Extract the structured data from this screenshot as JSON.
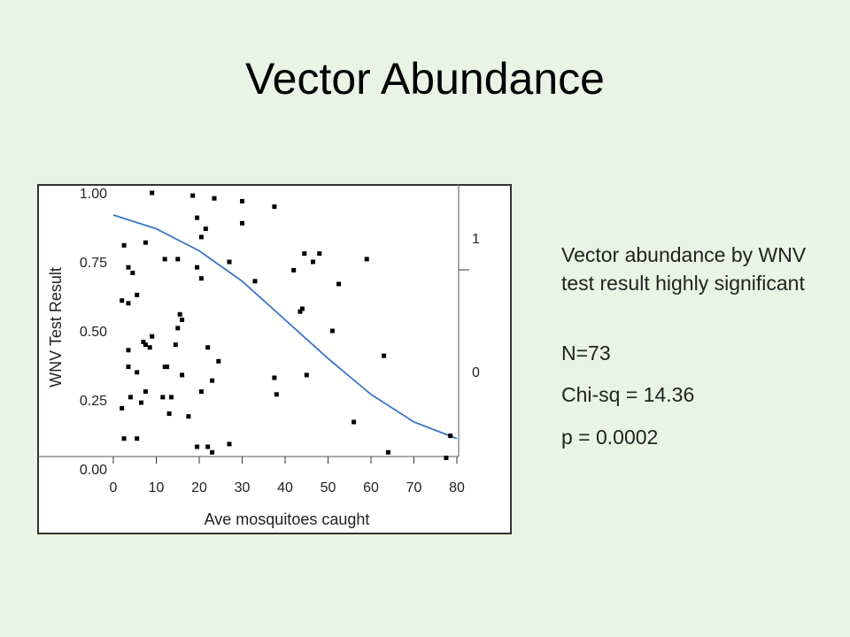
{
  "slide": {
    "title": "Vector Abundance",
    "stats": {
      "description": "Vector abundance by WNV test result highly significant",
      "n": "N=73",
      "chi_sq": "Chi-sq = 14.36",
      "p": "p = 0.0002"
    }
  },
  "chart_data": {
    "type": "scatter",
    "title": "",
    "xlabel": "Ave mosquitoes caught",
    "ylabel": "WNV Test Result",
    "xlim": [
      0,
      80
    ],
    "ylim": [
      0,
      1
    ],
    "x_ticks": [
      "0",
      "10",
      "20",
      "30",
      "40",
      "50",
      "60",
      "70",
      "80"
    ],
    "y_ticks": [
      "0.00",
      "0.25",
      "0.50",
      "0.75",
      "1.00"
    ],
    "right_axis_ticks": [
      "1",
      "0"
    ],
    "grid": false,
    "points": [
      {
        "x": 9,
        "y": 1.0
      },
      {
        "x": 18.5,
        "y": 0.99
      },
      {
        "x": 23.5,
        "y": 0.98
      },
      {
        "x": 30,
        "y": 0.97
      },
      {
        "x": 37.5,
        "y": 0.95
      },
      {
        "x": 19.5,
        "y": 0.91
      },
      {
        "x": 30,
        "y": 0.89
      },
      {
        "x": 21.5,
        "y": 0.87
      },
      {
        "x": 20.5,
        "y": 0.84
      },
      {
        "x": 7.5,
        "y": 0.82
      },
      {
        "x": 2.5,
        "y": 0.81
      },
      {
        "x": 44.5,
        "y": 0.78
      },
      {
        "x": 48,
        "y": 0.78
      },
      {
        "x": 46.5,
        "y": 0.75
      },
      {
        "x": 59,
        "y": 0.76
      },
      {
        "x": 12,
        "y": 0.76
      },
      {
        "x": 15,
        "y": 0.76
      },
      {
        "x": 27,
        "y": 0.75
      },
      {
        "x": 3.5,
        "y": 0.73
      },
      {
        "x": 19.5,
        "y": 0.73
      },
      {
        "x": 42,
        "y": 0.72
      },
      {
        "x": 4.5,
        "y": 0.71
      },
      {
        "x": 20.5,
        "y": 0.69
      },
      {
        "x": 33,
        "y": 0.68
      },
      {
        "x": 52.5,
        "y": 0.67
      },
      {
        "x": 5.5,
        "y": 0.63
      },
      {
        "x": 2,
        "y": 0.61
      },
      {
        "x": 3.5,
        "y": 0.6
      },
      {
        "x": 44,
        "y": 0.58
      },
      {
        "x": 43.5,
        "y": 0.57
      },
      {
        "x": 15.5,
        "y": 0.56
      },
      {
        "x": 16,
        "y": 0.54
      },
      {
        "x": 15,
        "y": 0.51
      },
      {
        "x": 51,
        "y": 0.5
      },
      {
        "x": 9,
        "y": 0.48
      },
      {
        "x": 7,
        "y": 0.46
      },
      {
        "x": 7.5,
        "y": 0.45
      },
      {
        "x": 8.5,
        "y": 0.44
      },
      {
        "x": 14.5,
        "y": 0.45
      },
      {
        "x": 22,
        "y": 0.44
      },
      {
        "x": 3.5,
        "y": 0.43
      },
      {
        "x": 63,
        "y": 0.41
      },
      {
        "x": 24.5,
        "y": 0.39
      },
      {
        "x": 12,
        "y": 0.37
      },
      {
        "x": 12.5,
        "y": 0.37
      },
      {
        "x": 3.5,
        "y": 0.37
      },
      {
        "x": 5.5,
        "y": 0.35
      },
      {
        "x": 16,
        "y": 0.34
      },
      {
        "x": 45,
        "y": 0.34
      },
      {
        "x": 37.5,
        "y": 0.33
      },
      {
        "x": 23,
        "y": 0.32
      },
      {
        "x": 7.5,
        "y": 0.28
      },
      {
        "x": 20.5,
        "y": 0.28
      },
      {
        "x": 38,
        "y": 0.27
      },
      {
        "x": 4,
        "y": 0.26
      },
      {
        "x": 11.5,
        "y": 0.26
      },
      {
        "x": 13.5,
        "y": 0.26
      },
      {
        "x": 6.5,
        "y": 0.24
      },
      {
        "x": 2,
        "y": 0.22
      },
      {
        "x": 13,
        "y": 0.2
      },
      {
        "x": 17.5,
        "y": 0.19
      },
      {
        "x": 56,
        "y": 0.17
      },
      {
        "x": 78.5,
        "y": 0.12
      },
      {
        "x": 2.5,
        "y": 0.11
      },
      {
        "x": 5.5,
        "y": 0.11
      },
      {
        "x": 27,
        "y": 0.09
      },
      {
        "x": 19.5,
        "y": 0.08
      },
      {
        "x": 22,
        "y": 0.08
      },
      {
        "x": 23,
        "y": 0.06
      },
      {
        "x": 64,
        "y": 0.06
      },
      {
        "x": 77.5,
        "y": 0.04
      }
    ],
    "fit_curve": [
      {
        "x": 0,
        "y": 0.92
      },
      {
        "x": 10,
        "y": 0.87
      },
      {
        "x": 20,
        "y": 0.79
      },
      {
        "x": 30,
        "y": 0.68
      },
      {
        "x": 40,
        "y": 0.54
      },
      {
        "x": 50,
        "y": 0.4
      },
      {
        "x": 60,
        "y": 0.27
      },
      {
        "x": 70,
        "y": 0.17
      },
      {
        "x": 80,
        "y": 0.11
      }
    ],
    "colors": {
      "points": "#000000",
      "fit_curve": "#3a73c8"
    }
  }
}
